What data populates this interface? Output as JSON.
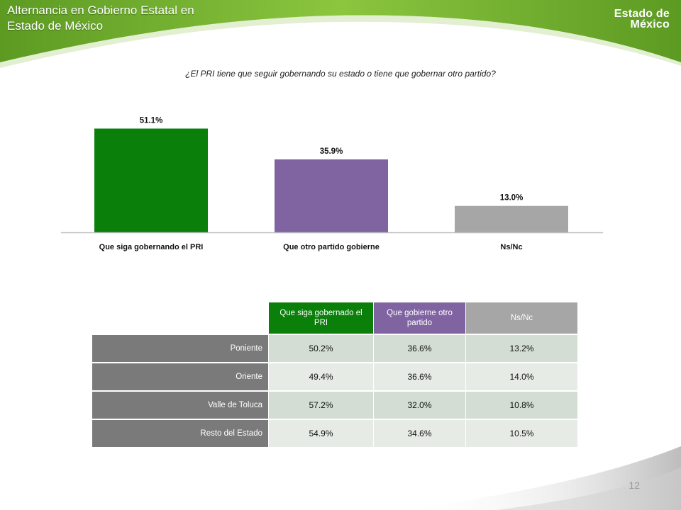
{
  "slide": {
    "title": "Alternancia en Gobierno Estatal en Estado de México",
    "brand": {
      "line1": "Estado de",
      "line2": "México"
    },
    "question": "¿El PRI tiene que seguir gobernando su estado o tiene que gobernar otro partido?",
    "page_number": "12"
  },
  "colors": {
    "header_green": "#77b034",
    "header_green_dark": "#4d8a1f",
    "series_pri": "#0a7f0a",
    "series_otro": "#8064a2",
    "series_nsnc": "#a6a6a6",
    "row_label_bg": "#7a7a7a"
  },
  "chart_data": {
    "type": "bar",
    "categories": [
      "Que siga gobernando el PRI",
      "Que otro partido gobierne",
      "Ns/Nc"
    ],
    "values": [
      51.1,
      35.9,
      13.0
    ],
    "data_labels": [
      "51.1%",
      "35.9%",
      "13.0%"
    ],
    "colors": [
      "#0a7f0a",
      "#8064a2",
      "#a6a6a6"
    ],
    "ylim": [
      0,
      60
    ],
    "grid": false,
    "legend": "none"
  },
  "table": {
    "columns": [
      {
        "label": "Que siga gobernado el PRI",
        "color": "#0a7f0a"
      },
      {
        "label": "Que gobierne otro partido",
        "color": "#8064a2"
      },
      {
        "label": "Ns/Nc",
        "color": "#a6a6a6"
      }
    ],
    "rows": [
      {
        "label": "Poniente",
        "values": [
          "50.2%",
          "36.6%",
          "13.2%"
        ]
      },
      {
        "label": "Oriente",
        "values": [
          "49.4%",
          "36.6%",
          "14.0%"
        ]
      },
      {
        "label": "Valle de Toluca",
        "values": [
          "57.2%",
          "32.0%",
          "10.8%"
        ]
      },
      {
        "label": "Resto del Estado",
        "values": [
          "54.9%",
          "34.6%",
          "10.5%"
        ]
      }
    ]
  }
}
